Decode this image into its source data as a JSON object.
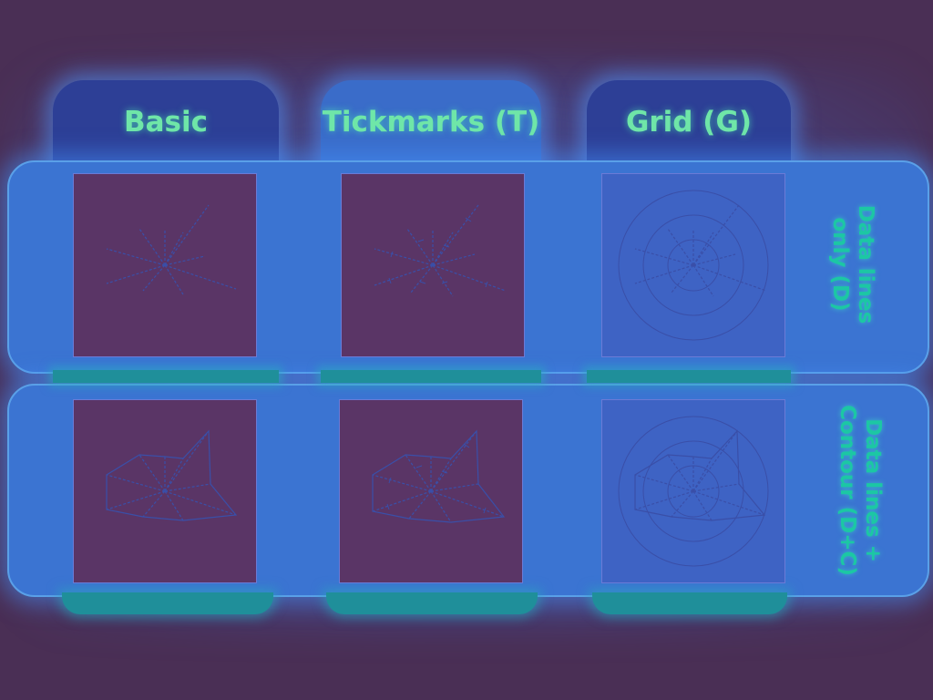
{
  "columns": [
    {
      "key": "basic",
      "label": "Basic"
    },
    {
      "key": "tickmarks",
      "label": "Tickmarks (T)"
    },
    {
      "key": "grid",
      "label": "Grid (G)"
    }
  ],
  "rows": [
    {
      "key": "data-lines-only",
      "label_lines": [
        "Data lines",
        "only (D)"
      ]
    },
    {
      "key": "data-lines-contour",
      "label_lines": [
        "Data lines +",
        "Contour (D+C)"
      ]
    }
  ],
  "colors": {
    "background": "#4a2f55",
    "tab": "#2d3f96",
    "row_band": "#3b74d2",
    "label_text": "#6fe6a8",
    "row_label_text": "#1cc7a4",
    "glyph_line": "#3a4fa8"
  }
}
